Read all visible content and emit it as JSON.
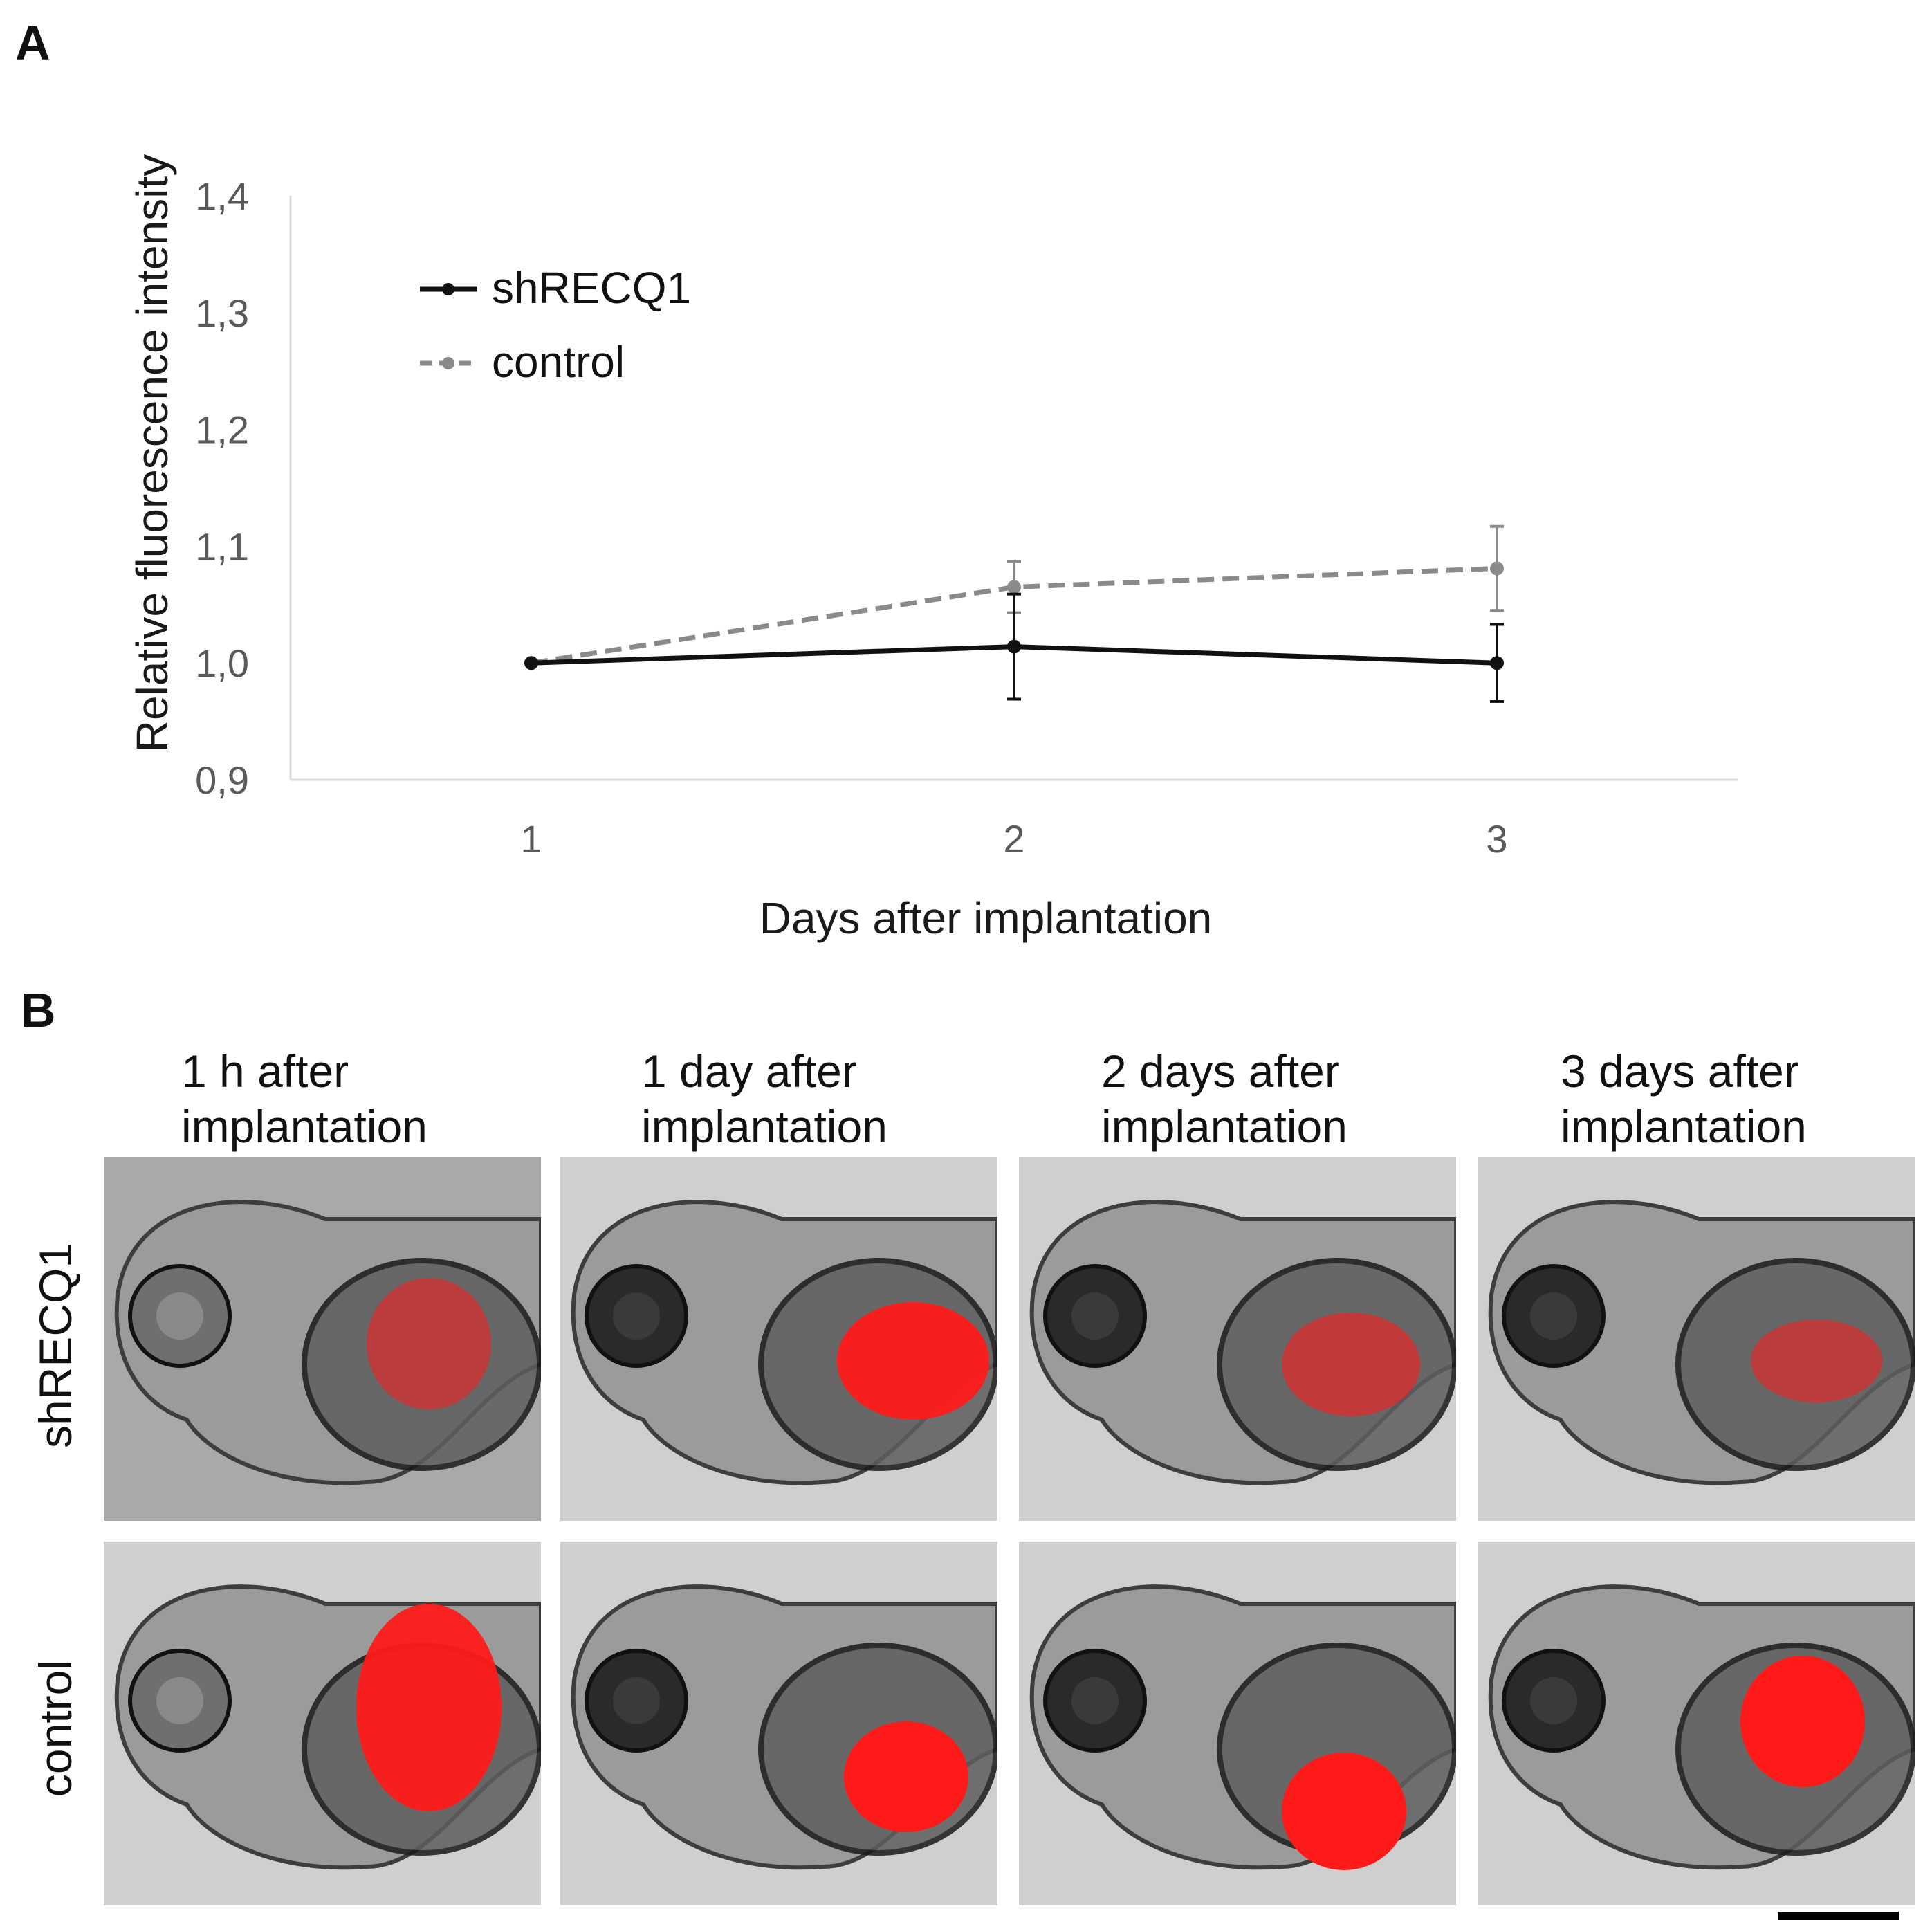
{
  "panel_labels": {
    "a": "A",
    "b": "B"
  },
  "chart_data": {
    "type": "line",
    "title": "",
    "xlabel": "Days after implantation",
    "ylabel": "Relative fluorescence intensity",
    "categories": [
      "1",
      "2",
      "3"
    ],
    "y_ticks": [
      "0,9",
      "1,0",
      "1,1",
      "1,2",
      "1,3",
      "1,4"
    ],
    "y_tick_values": [
      0.9,
      1.0,
      1.1,
      1.2,
      1.3,
      1.4
    ],
    "ylim": [
      0.9,
      1.4
    ],
    "legend_position": "top-left",
    "series": [
      {
        "name": "shRECQ1",
        "values": [
          1.0,
          1.014,
          1.0
        ],
        "error": [
          0,
          0.045,
          0.033
        ],
        "color": "#111111",
        "style": "solid"
      },
      {
        "name": "control",
        "values": [
          1.0,
          1.065,
          1.081
        ],
        "error": [
          0,
          0.022,
          0.036
        ],
        "color": "#8a8a8a",
        "style": "dashed"
      }
    ]
  },
  "images": {
    "column_titles": [
      [
        "1 h after",
        "implantation"
      ],
      [
        "1 day after",
        "implantation"
      ],
      [
        "2 days after",
        "implantation"
      ],
      [
        "3 days after",
        "implantation"
      ]
    ],
    "row_labels": [
      "shRECQ1",
      "control"
    ],
    "colors": {
      "red_signal": "#ff1a1a",
      "tissue": "#7a7a7a"
    }
  }
}
